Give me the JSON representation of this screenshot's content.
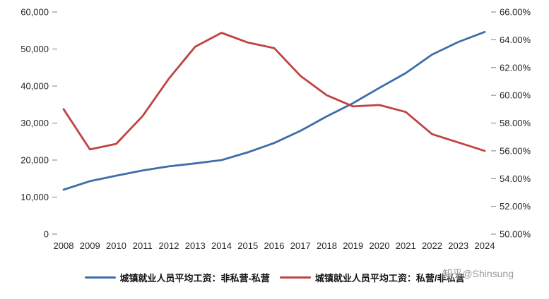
{
  "chart_data": {
    "type": "line",
    "title": "",
    "categories": [
      "2008",
      "2009",
      "2010",
      "2011",
      "2012",
      "2013",
      "2014",
      "2015",
      "2016",
      "2017",
      "2018",
      "2019",
      "2020",
      "2021",
      "2022",
      "2023",
      "2024"
    ],
    "series": [
      {
        "name": "城镇就业人员平均工资：非私营-私营",
        "axis": "left",
        "color": "#3E6DA9",
        "values": [
          12000,
          14300,
          15800,
          17200,
          18300,
          19100,
          20000,
          22100,
          24600,
          27900,
          31800,
          35400,
          39500,
          43500,
          48500,
          51900,
          54600
        ]
      },
      {
        "name": "城镇就业人员平均工资：私营/非私营",
        "axis": "right",
        "color": "#BF4341",
        "values": [
          59.0,
          56.1,
          56.5,
          58.5,
          61.2,
          63.5,
          64.5,
          63.8,
          63.4,
          61.4,
          60.0,
          59.2,
          59.3,
          58.8,
          57.2,
          56.6,
          56.0
        ]
      }
    ],
    "left_axis": {
      "min": 0,
      "max": 60000,
      "tick_labels": [
        "0",
        "10,000",
        "20,000",
        "30,000",
        "40,000",
        "50,000",
        "60,000"
      ]
    },
    "right_axis": {
      "min": 50,
      "max": 66,
      "tick_labels": [
        "50.00%",
        "52.00%",
        "54.00%",
        "56.00%",
        "58.00%",
        "60.00%",
        "62.00%",
        "64.00%",
        "66.00%"
      ]
    },
    "grid": false,
    "legend_position": "bottom"
  },
  "watermark": "知乎@Shinsung"
}
